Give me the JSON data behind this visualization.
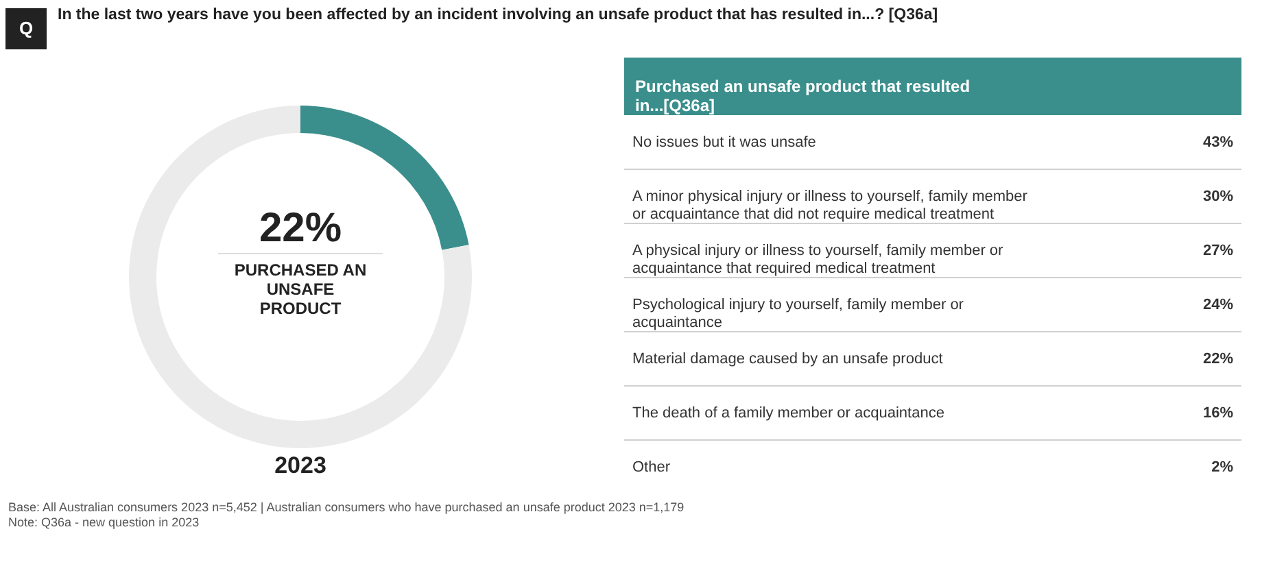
{
  "chart_data": [
    {
      "type": "donut",
      "title": "In the last two years have you been affected by an incident involving an unsafe product that has resulted in...? [Q36a]",
      "categories": [
        "PURCHASED AN UNSAFE PRODUCT",
        null
      ],
      "values": [
        22,
        78
      ],
      "colors": [
        "#3a8f8c",
        "#ebebeb"
      ],
      "value_labels": [
        "22%",
        null
      ],
      "xlabel": "2023",
      "legend": false,
      "annotations": [
        "Q",
        "Base: All Australian consumers 2023 n=5,452 | Australian consumers who have purchased an unsafe product 2023 n=1,179",
        "Note: Q36a - new question in 2023"
      ]
    },
    {
      "type": "other",
      "title": "Purchased an unsafe product that resulted in...[Q36a]",
      "color": "#3a8f8c",
      "categories": [
        "No issues but it was unsafe",
        "A minor physical injury or illness to yourself, family member or acquaintance that did not require medical treatment",
        "A physical injury or illness to yourself, family member or acquaintance that required medical treatment",
        "Psychological injury to yourself, family member or acquaintance",
        "Material damage caused by an unsafe product",
        "The death of a family member or acquaintance",
        "Other"
      ],
      "values": [
        43,
        30,
        27,
        24,
        22,
        16,
        2
      ],
      "value_labels": [
        "43%",
        "30%",
        "27%",
        "24%",
        "22%",
        "16%",
        "2%"
      ]
    }
  ]
}
